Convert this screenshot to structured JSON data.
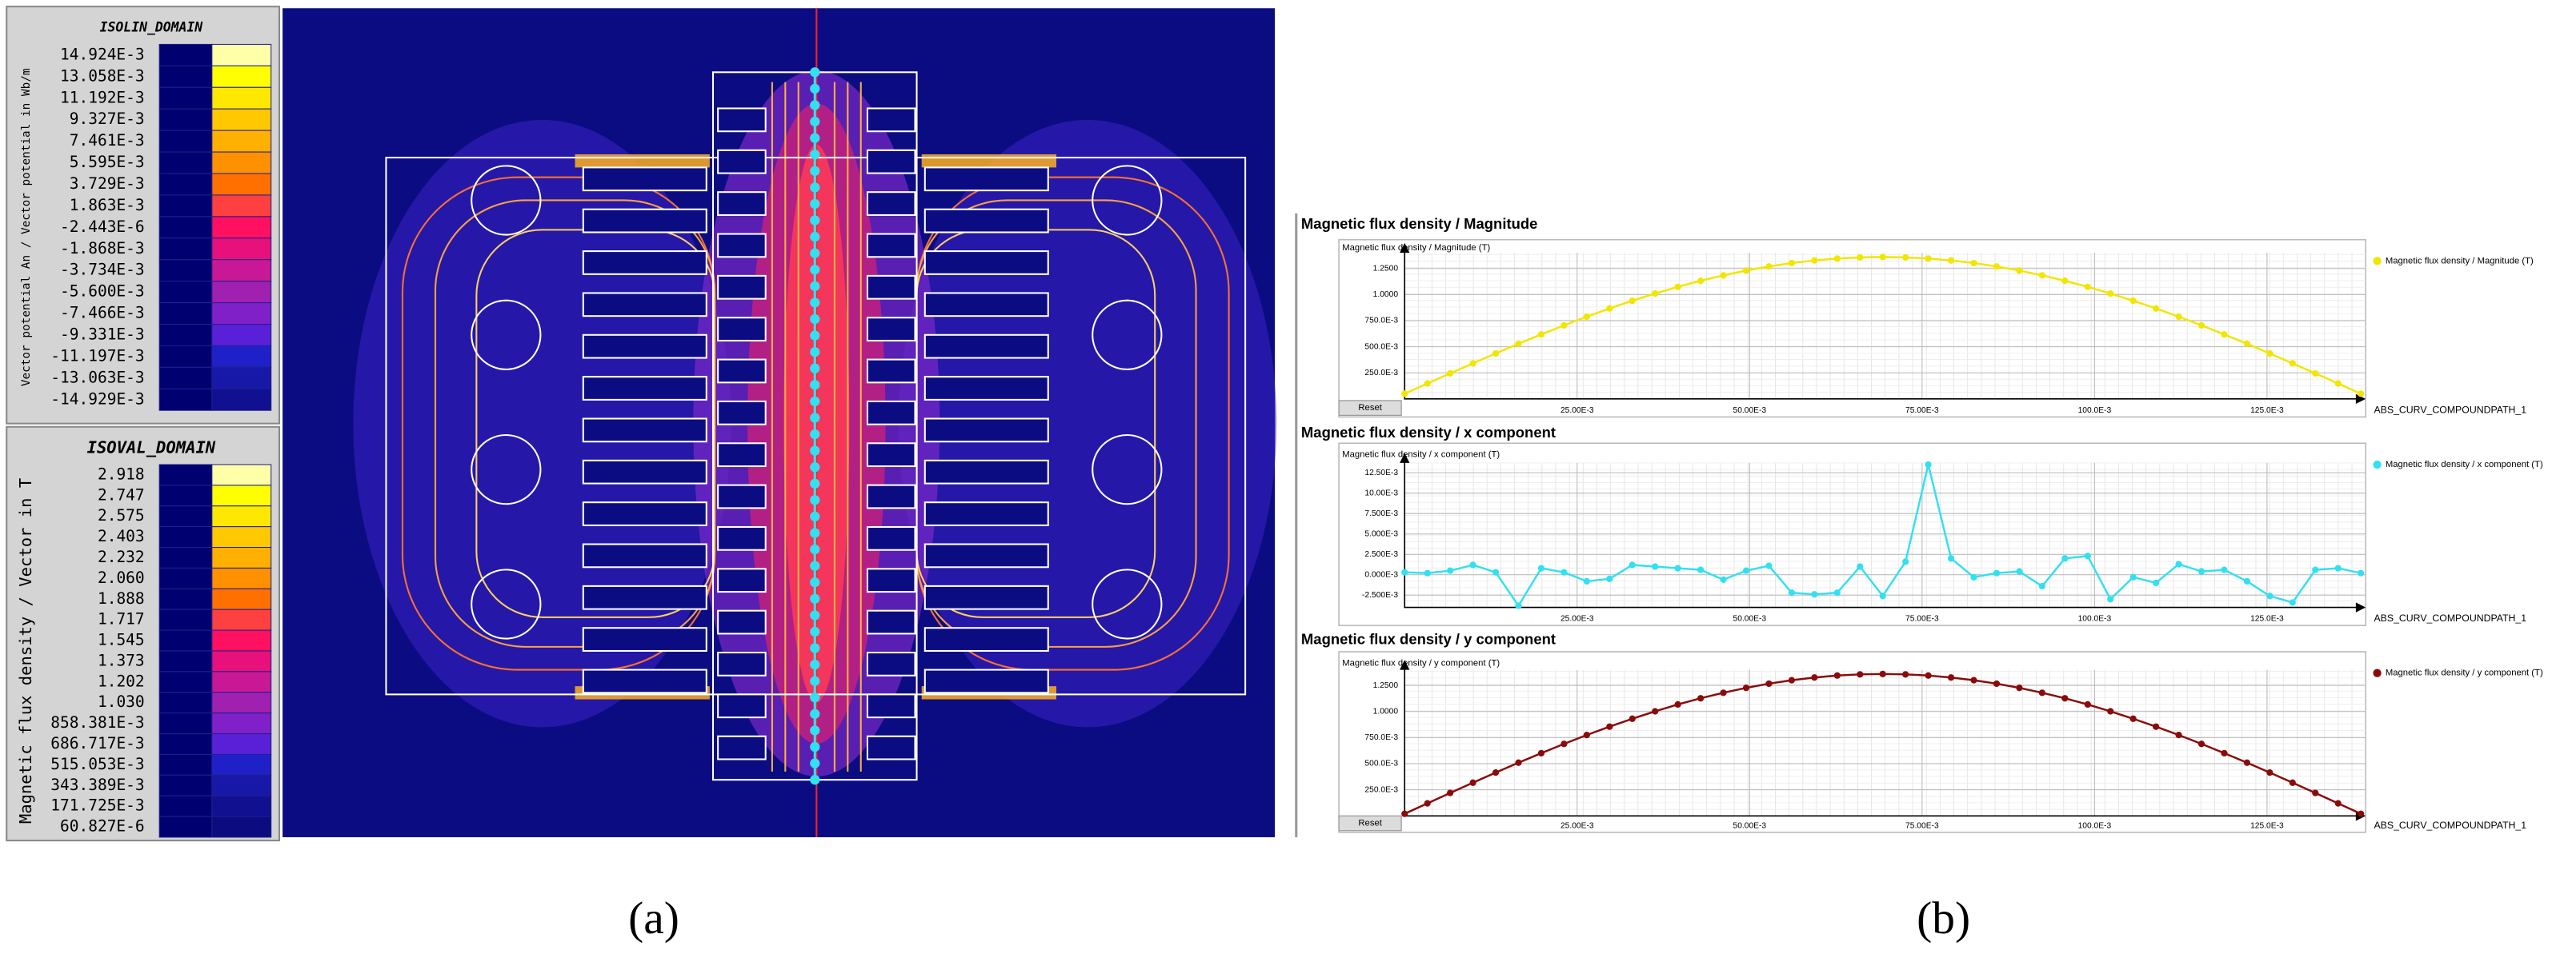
{
  "legends": [
    {
      "title": "ISOLIN_DOMAIN",
      "axis_label": "Vector potential An / Vector potential in Wb/m",
      "labels": [
        "14.924E-3",
        "13.058E-3",
        "11.192E-3",
        "9.327E-3",
        "7.461E-3",
        "5.595E-3",
        "3.729E-3",
        "1.863E-3",
        "-2.443E-6",
        "-1.868E-3",
        "-3.734E-3",
        "-5.600E-3",
        "-7.466E-3",
        "-9.331E-3",
        "-11.197E-3",
        "-13.063E-3",
        "-14.929E-3"
      ],
      "colors": [
        "#ffffa8",
        "#ffff00",
        "#ffe800",
        "#ffc800",
        "#ffb000",
        "#ff9000",
        "#ff7000",
        "#ff4040",
        "#ff1060",
        "#e8107a",
        "#c81896",
        "#a020b0",
        "#8020c8",
        "#5a20d8",
        "#2020c8",
        "#1818a8",
        "#101090"
      ]
    },
    {
      "title": "ISOVAL_DOMAIN",
      "axis_label": "Magnetic flux density / Vector in T",
      "labels": [
        "2.918",
        "2.747",
        "2.575",
        "2.403",
        "2.232",
        "2.060",
        "1.888",
        "1.717",
        "1.545",
        "1.373",
        "1.202",
        "1.030",
        "858.381E-3",
        "686.717E-3",
        "515.053E-3",
        "343.389E-3",
        "171.725E-3",
        "60.827E-6"
      ],
      "colors": [
        "#ffffa8",
        "#ffff00",
        "#ffe800",
        "#ffc800",
        "#ffb000",
        "#ff9000",
        "#ff7000",
        "#ff4040",
        "#ff1060",
        "#e8107a",
        "#c81896",
        "#a020b0",
        "#8020c8",
        "#5a20d8",
        "#2020c8",
        "#1818a8",
        "#101090",
        "#0c0c80"
      ]
    }
  ],
  "captions": [
    "(a)",
    "(b)"
  ],
  "chart_data": [
    {
      "type": "line",
      "title": "Magnetic flux density / Magnitude",
      "y_label": "Magnetic flux density / Magnitude (T)",
      "x_label": "ABS_CURV_COMPOUNDPATH_1",
      "reset_label": "Reset",
      "grid": true,
      "x": [
        0,
        0.0033,
        0.0066,
        0.0099,
        0.0132,
        0.0165,
        0.0198,
        0.0231,
        0.0264,
        0.0297,
        0.033,
        0.0363,
        0.0396,
        0.0429,
        0.0462,
        0.0495,
        0.0528,
        0.0561,
        0.0594,
        0.0627,
        0.066,
        0.0693,
        0.0726,
        0.0759,
        0.0792,
        0.0825,
        0.0858,
        0.0891,
        0.0924,
        0.0957,
        0.099,
        0.1023,
        0.1056,
        0.1089,
        0.1122,
        0.1155,
        0.1188,
        0.1221,
        0.1254,
        0.1287,
        0.132,
        0.1353,
        0.1386
      ],
      "series": [
        {
          "name": "Magnetic flux density / Magnitude (T)",
          "color": "#f2e600",
          "values": [
            0.05,
            0.148,
            0.245,
            0.341,
            0.436,
            0.529,
            0.618,
            0.705,
            0.788,
            0.867,
            0.941,
            1.01,
            1.074,
            1.132,
            1.184,
            1.23,
            1.269,
            1.302,
            1.327,
            1.345,
            1.356,
            1.36,
            1.356,
            1.345,
            1.327,
            1.302,
            1.269,
            1.23,
            1.184,
            1.132,
            1.074,
            1.01,
            0.941,
            0.867,
            0.788,
            0.705,
            0.618,
            0.529,
            0.436,
            0.341,
            0.245,
            0.148,
            0.05
          ]
        }
      ],
      "xlim": [
        0,
        0.1393
      ],
      "xticks": [
        {
          "value": 0.025,
          "label": "25.00E-3"
        },
        {
          "value": 0.05,
          "label": "50.00E-3"
        },
        {
          "value": 0.075,
          "label": "75.00E-3"
        },
        {
          "value": 0.1,
          "label": "100.0E-3"
        },
        {
          "value": 0.125,
          "label": "125.0E-3"
        }
      ],
      "ylim": [
        0,
        1.4
      ],
      "yticks": [
        {
          "value": 0.25,
          "label": "250.0E-3"
        },
        {
          "value": 0.5,
          "label": "500.0E-3"
        },
        {
          "value": 0.75,
          "label": "750.0E-3"
        },
        {
          "value": 1,
          "label": "1.0000"
        },
        {
          "value": 1.25,
          "label": "1.2500"
        }
      ]
    },
    {
      "type": "line",
      "title": "Magnetic flux density / x component",
      "y_label": "Magnetic flux density / x component (T)",
      "x_label": "ABS_CURV_COMPOUNDPATH_1",
      "grid": true,
      "x": [
        0,
        0.0033,
        0.0066,
        0.0099,
        0.0132,
        0.0165,
        0.0198,
        0.0231,
        0.0264,
        0.0297,
        0.033,
        0.0363,
        0.0396,
        0.0429,
        0.0462,
        0.0495,
        0.0528,
        0.0561,
        0.0594,
        0.0627,
        0.066,
        0.0693,
        0.0726,
        0.0759,
        0.0792,
        0.0825,
        0.0858,
        0.0891,
        0.0924,
        0.0957,
        0.099,
        0.1023,
        0.1056,
        0.1089,
        0.1122,
        0.1155,
        0.1188,
        0.1221,
        0.1254,
        0.1287,
        0.132,
        0.1353,
        0.1386
      ],
      "series": [
        {
          "name": "Magnetic flux density / x component (T)",
          "color": "#33e0f0",
          "values": [
            0.0003,
            0.0002,
            0.0005,
            0.0012,
            0.0003,
            -0.0038,
            0.0008,
            0.0003,
            -0.0008,
            -0.0005,
            0.0012,
            0.001,
            0.0008,
            0.0006,
            -0.0006,
            0.0005,
            0.0011,
            -0.0022,
            -0.0024,
            -0.0022,
            0.001,
            -0.0026,
            0.0016,
            0.0135,
            0.002,
            -0.0003,
            0.0002,
            0.0004,
            -0.0014,
            0.002,
            0.0023,
            -0.003,
            -0.0003,
            -0.001,
            0.0013,
            0.0004,
            0.0006,
            -0.0008,
            -0.0026,
            -0.0034,
            0.0006,
            0.0008,
            0.0002
          ]
        }
      ],
      "xlim": [
        0,
        0.1393
      ],
      "xticks": [
        {
          "value": 0.025,
          "label": "25.00E-3"
        },
        {
          "value": 0.05,
          "label": "50.00E-3"
        },
        {
          "value": 0.075,
          "label": "75.00E-3"
        },
        {
          "value": 0.1,
          "label": "100.0E-3"
        },
        {
          "value": 0.125,
          "label": "125.0E-3"
        }
      ],
      "ylim": [
        -0.004,
        0.0137
      ],
      "yticks": [
        {
          "value": -0.0025,
          "label": "-2.500E-3"
        },
        {
          "value": 0,
          "label": "0.000E-3"
        },
        {
          "value": 0.0025,
          "label": "2.500E-3"
        },
        {
          "value": 0.005,
          "label": "5.000E-3"
        },
        {
          "value": 0.0075,
          "label": "7.500E-3"
        },
        {
          "value": 0.01,
          "label": "10.00E-3"
        },
        {
          "value": 0.0125,
          "label": "12.50E-3"
        }
      ]
    },
    {
      "type": "line",
      "title": "Magnetic flux density / y component",
      "y_label": "Magnetic flux density / y component (T)",
      "x_label": "ABS_CURV_COMPOUNDPATH_1",
      "reset_label": "Reset",
      "grid": true,
      "x": [
        0,
        0.0033,
        0.0066,
        0.0099,
        0.0132,
        0.0165,
        0.0198,
        0.0231,
        0.0264,
        0.0297,
        0.033,
        0.0363,
        0.0396,
        0.0429,
        0.0462,
        0.0495,
        0.0528,
        0.0561,
        0.0594,
        0.0627,
        0.066,
        0.0693,
        0.0726,
        0.0759,
        0.0792,
        0.0825,
        0.0858,
        0.0891,
        0.0924,
        0.0957,
        0.099,
        0.1023,
        0.1056,
        0.1089,
        0.1122,
        0.1155,
        0.1188,
        0.1221,
        0.1254,
        0.1287,
        0.132,
        0.1353,
        0.1386
      ],
      "series": [
        {
          "name": "Magnetic flux density / y component (T)",
          "color": "#8b0a0a",
          "values": [
            0.02,
            0.12,
            0.22,
            0.318,
            0.415,
            0.51,
            0.601,
            0.69,
            0.775,
            0.855,
            0.931,
            1.002,
            1.068,
            1.127,
            1.18,
            1.227,
            1.267,
            1.3,
            1.326,
            1.345,
            1.356,
            1.36,
            1.356,
            1.345,
            1.326,
            1.3,
            1.267,
            1.227,
            1.18,
            1.127,
            1.068,
            1.002,
            0.931,
            0.855,
            0.775,
            0.69,
            0.601,
            0.51,
            0.415,
            0.318,
            0.22,
            0.12,
            0.02
          ]
        }
      ],
      "xlim": [
        0,
        0.1393
      ],
      "xticks": [
        {
          "value": 0.025,
          "label": "25.00E-3"
        },
        {
          "value": 0.05,
          "label": "50.00E-3"
        },
        {
          "value": 0.075,
          "label": "75.00E-3"
        },
        {
          "value": 0.1,
          "label": "100.0E-3"
        },
        {
          "value": 0.125,
          "label": "125.0E-3"
        }
      ],
      "ylim": [
        0,
        1.4
      ],
      "yticks": [
        {
          "value": 0.25,
          "label": "250.0E-3"
        },
        {
          "value": 0.5,
          "label": "500.0E-3"
        },
        {
          "value": 0.75,
          "label": "750.0E-3"
        },
        {
          "value": 1,
          "label": "1.0000"
        },
        {
          "value": 1.25,
          "label": "1.2500"
        }
      ]
    }
  ]
}
